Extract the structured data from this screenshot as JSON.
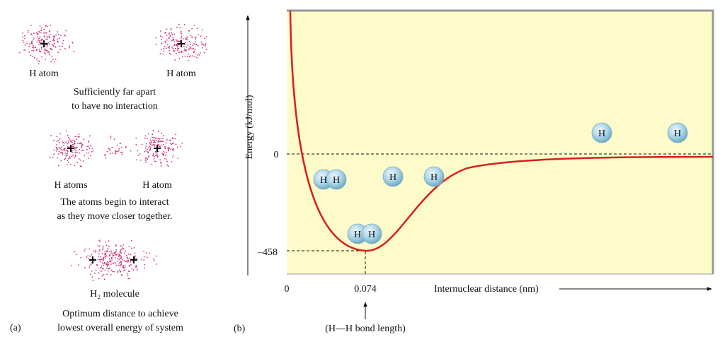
{
  "panel_a": {
    "label": "(a)",
    "stage_far": {
      "atoms": [
        "H atom",
        "H atom"
      ],
      "caption": [
        "Sufficiently far apart",
        "to have no interaction"
      ]
    },
    "stage_near": {
      "atoms": [
        "H atoms",
        "H atom"
      ],
      "caption": [
        "The atoms begin to interact",
        "as they move closer together."
      ]
    },
    "stage_bond": {
      "molecule": "H₂ molecule",
      "caption": [
        "Optimum distance to achieve",
        "lowest overall energy of system"
      ]
    }
  },
  "panel_b": {
    "label": "(b)",
    "y_axis_label": "Energy (kJ/mol)",
    "x_axis_label": "Internuclear distance (nm)",
    "y_ticks": [
      "0",
      "–458"
    ],
    "x_ticks": [
      "0",
      "0.074"
    ],
    "annotation": "(H—H bond length)",
    "atom_label": "H"
  }
}
